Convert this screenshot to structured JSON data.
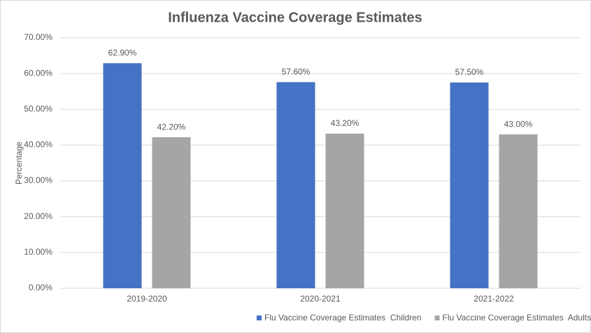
{
  "chart_data": {
    "type": "bar",
    "title": "Influenza Vaccine Coverage Estimates",
    "y_label": "Percentage",
    "categories": [
      "2019-2020",
      "2020-2021",
      "2021-2022"
    ],
    "series": [
      {
        "name": "Flu Vaccine Coverage Estimates  Children",
        "color": "#4472c4",
        "values": [
          62.9,
          57.6,
          57.5
        ],
        "value_labels": [
          "62.90%",
          "57.60%",
          "57.50%"
        ]
      },
      {
        "name": "Flu Vaccine Coverage Estimates  Adults",
        "color": "#a5a5a5",
        "values": [
          42.2,
          43.2,
          43.0
        ],
        "value_labels": [
          "42.20%",
          "43.20%",
          "43.00%"
        ]
      }
    ],
    "ylim": [
      0,
      70
    ],
    "yticks": [
      {
        "value": 0,
        "label": "0.00%"
      },
      {
        "value": 10,
        "label": "10.00%"
      },
      {
        "value": 20,
        "label": "20.00%"
      },
      {
        "value": 30,
        "label": "30.00%"
      },
      {
        "value": 40,
        "label": "40.00%"
      },
      {
        "value": 50,
        "label": "50.00%"
      },
      {
        "value": 60,
        "label": "60.00%"
      },
      {
        "value": 70,
        "label": "70.00%"
      }
    ],
    "grid": true,
    "legend": "bottom"
  }
}
